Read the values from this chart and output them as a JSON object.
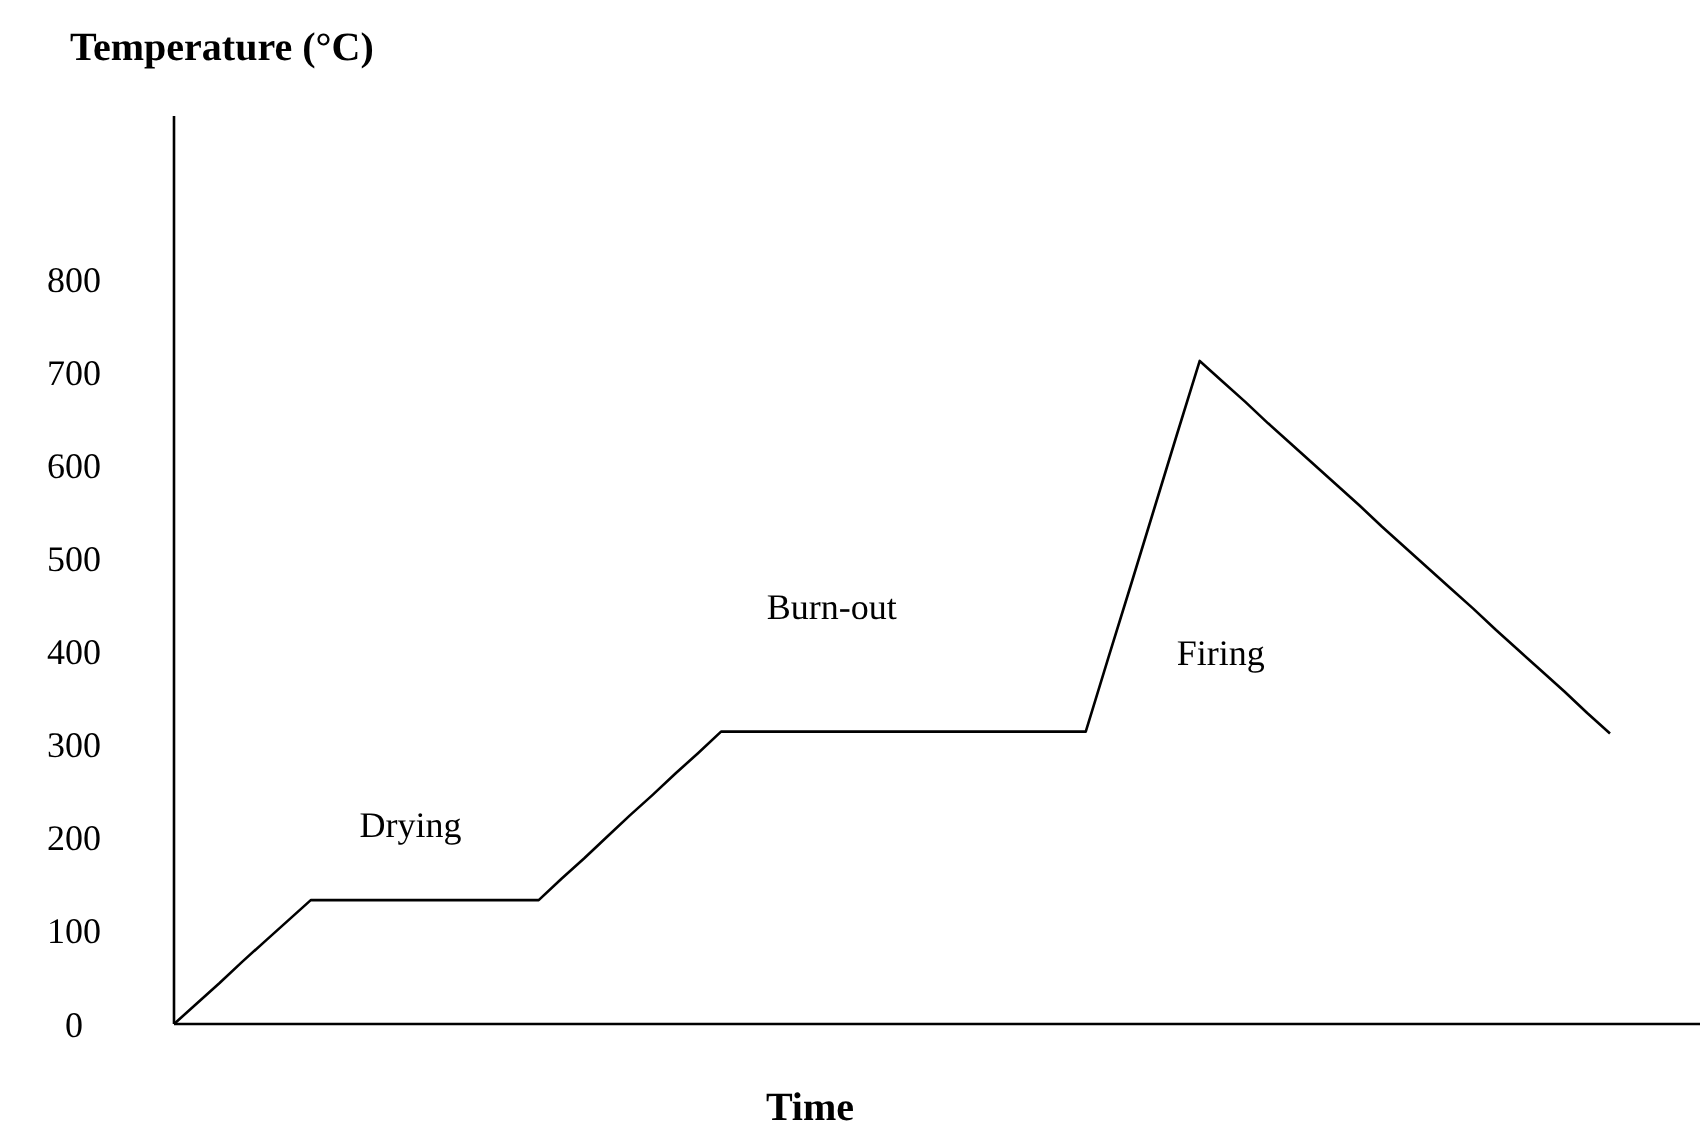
{
  "chart_data": {
    "type": "line",
    "ylabel": "Temperature (°C)",
    "xlabel": "Time",
    "categories": [
      null,
      null,
      null,
      null,
      null,
      null,
      null,
      null,
      null,
      null,
      null,
      null,
      null,
      null,
      null,
      null,
      null,
      null,
      null,
      null,
      null,
      null,
      null,
      null,
      null,
      null,
      null,
      null,
      null,
      null,
      null,
      null,
      null,
      null,
      null,
      null,
      null,
      null,
      null,
      null,
      null,
      null,
      null,
      null,
      null,
      null,
      null,
      null,
      null,
      null,
      null,
      null,
      null,
      null,
      null,
      null,
      null,
      null,
      null,
      null,
      null,
      null,
      null,
      null
    ],
    "values": [
      0,
      22,
      44,
      67,
      89,
      111,
      133,
      133,
      133,
      133,
      133,
      133,
      133,
      133,
      133,
      133,
      133,
      156,
      178,
      201,
      224,
      246,
      269,
      291,
      314,
      314,
      314,
      314,
      314,
      314,
      314,
      314,
      314,
      314,
      314,
      314,
      314,
      314,
      314,
      314,
      314,
      394,
      473,
      553,
      633,
      712,
      690,
      668,
      645,
      623,
      601,
      579,
      557,
      534,
      512,
      490,
      468,
      446,
      423,
      401,
      379,
      357,
      334,
      312
    ],
    "color": "#000000",
    "ylim": [
      0,
      975
    ],
    "yticks": [
      0,
      100,
      200,
      300,
      400,
      500,
      600,
      700,
      800
    ],
    "tick_labels": "y",
    "grid": false,
    "marker": "none",
    "line_style": "solid",
    "annotations": [
      "Drying",
      "Burn-out",
      "Firing"
    ]
  }
}
